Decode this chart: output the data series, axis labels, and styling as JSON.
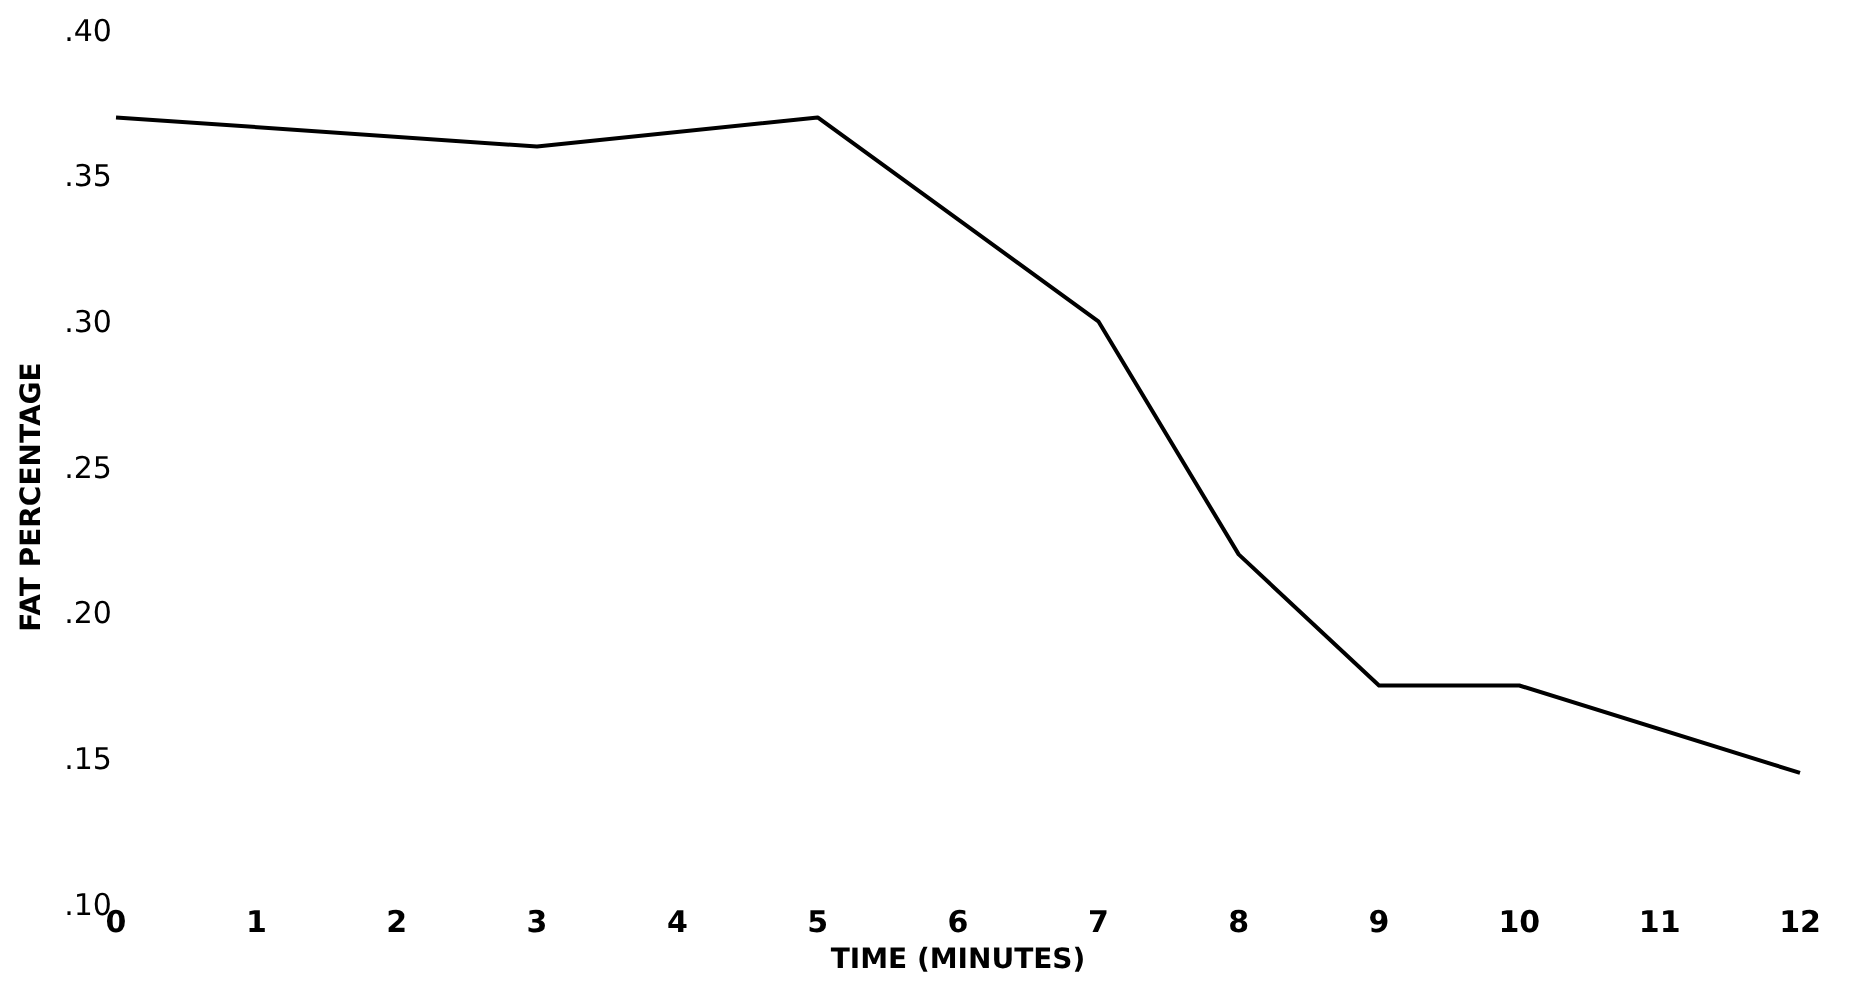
{
  "chart_data": {
    "type": "line",
    "xlabel": "TIME (MINUTES)",
    "ylabel": "FAT PERCENTAGE",
    "x": [
      0,
      3,
      5,
      7,
      8,
      9,
      10,
      12
    ],
    "series": [
      {
        "color": "#000000",
        "values": [
          0.37,
          0.36,
          0.37,
          0.3,
          0.22,
          0.175,
          0.175,
          0.145
        ]
      }
    ],
    "xlim": [
      0,
      12
    ],
    "xticks": [
      0,
      1,
      2,
      3,
      4,
      5,
      6,
      7,
      8,
      9,
      10,
      11,
      12
    ],
    "ylim": [
      0.1,
      0.4
    ],
    "yticks": [
      {
        "value": 0.1,
        "label": ".10"
      },
      {
        "value": 0.15,
        "label": ".15"
      },
      {
        "value": 0.2,
        "label": ".20"
      },
      {
        "value": 0.25,
        "label": ".25"
      },
      {
        "value": 0.3,
        "label": ".30"
      },
      {
        "value": 0.35,
        "label": ".35"
      },
      {
        "value": 0.4,
        "label": ".40"
      }
    ],
    "grid": false,
    "marker": "none",
    "line_style": "solid"
  }
}
